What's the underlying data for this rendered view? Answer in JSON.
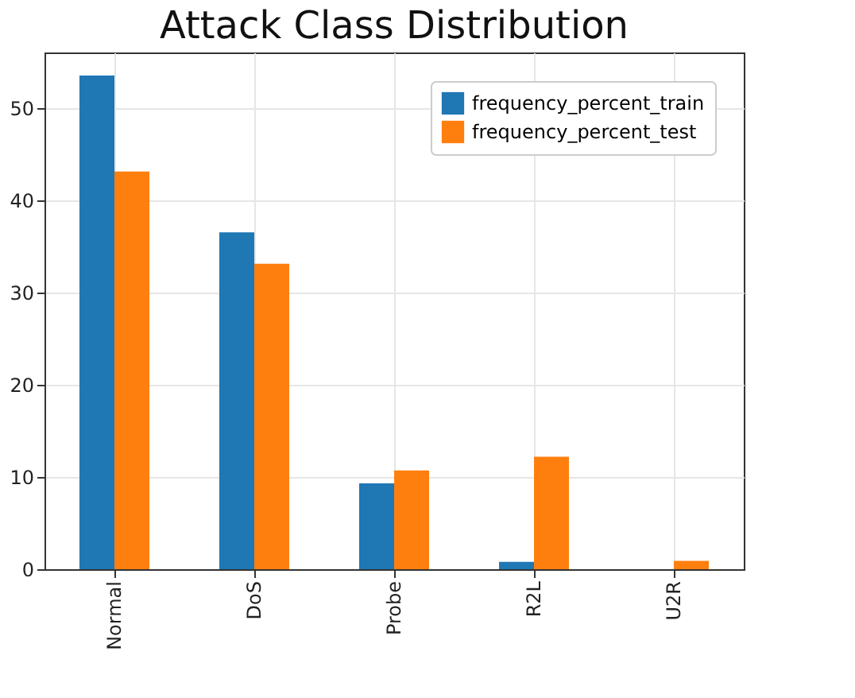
{
  "chart_data": {
    "type": "bar",
    "title": "Attack Class Distribution",
    "categories": [
      "Normal",
      "DoS",
      "Probe",
      "R2L",
      "U2R"
    ],
    "series": [
      {
        "name": "frequency_percent_train",
        "color": "#1f77b4",
        "values": [
          53.5,
          36.5,
          9.3,
          0.8,
          null
        ]
      },
      {
        "name": "frequency_percent_test",
        "color": "#ff7f0e",
        "values": [
          43.1,
          33.1,
          10.7,
          12.2,
          0.9
        ]
      }
    ],
    "ylim": [
      0,
      56
    ],
    "yticks": [
      0,
      10,
      20,
      30,
      40,
      50
    ],
    "grid": true,
    "legend": "top right"
  }
}
